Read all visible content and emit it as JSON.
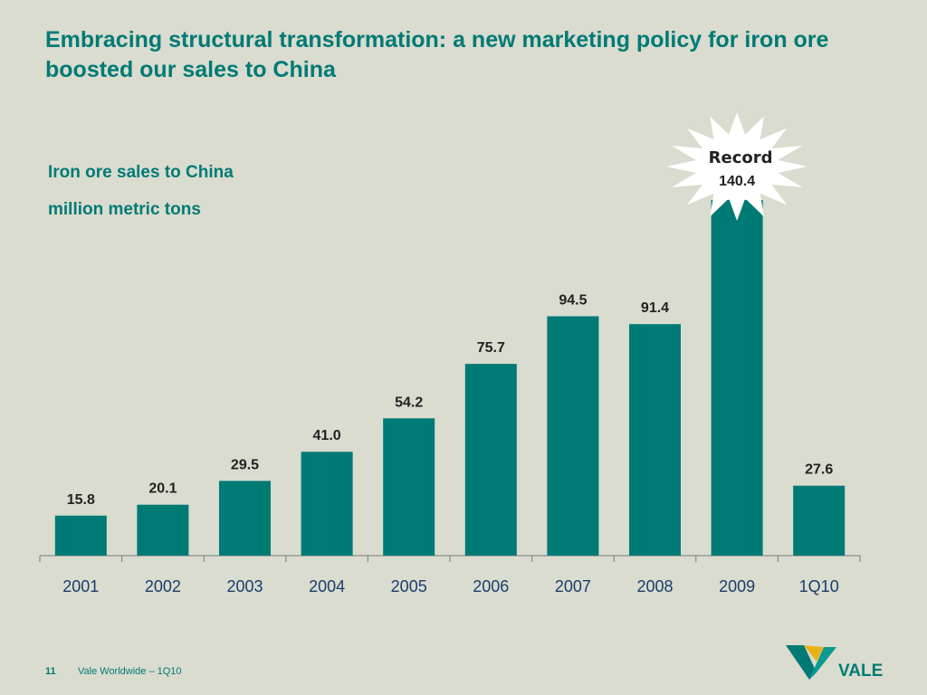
{
  "slide": {
    "title": "Embracing structural transformation: a new marketing policy for iron ore boosted our sales to China",
    "subtitle_line1": "Iron ore sales to China",
    "subtitle_line2": "million metric tons"
  },
  "chart_data": {
    "type": "bar",
    "categories": [
      "2001",
      "2002",
      "2003",
      "2004",
      "2005",
      "2006",
      "2007",
      "2008",
      "2009",
      "1Q10"
    ],
    "values": [
      15.8,
      20.1,
      29.5,
      41.0,
      54.2,
      75.7,
      94.5,
      91.4,
      140.4,
      27.6
    ],
    "value_labels": [
      "15.8",
      "20.1",
      "29.5",
      "41.0",
      "54.2",
      "75.7",
      "94.5",
      "91.4",
      "140.4",
      "27.6"
    ],
    "title": "Iron ore sales to China",
    "ylabel": "million metric tons",
    "annotation": {
      "category": "2009",
      "text": "Record"
    },
    "colors": {
      "bar": "#007a75",
      "burst": "#ffffff",
      "axis": "#7a7a7a"
    },
    "grid": false,
    "legend": "none"
  },
  "footer": {
    "page_number": "11",
    "text": "Vale Worldwide – 1Q10",
    "logo_text": "VALE"
  }
}
